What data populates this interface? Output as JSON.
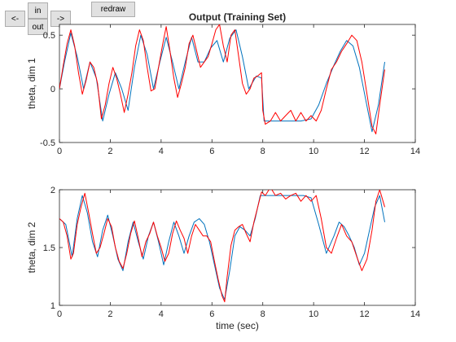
{
  "controls": {
    "prev_label": "<-",
    "zoom_in_label": "in",
    "zoom_out_label": "out",
    "next_label": "->",
    "redraw_label": "redraw"
  },
  "colors": {
    "target": "#0072bd",
    "prediction": "#ff0000",
    "axes": "#262626"
  },
  "chart_data": [
    {
      "type": "line",
      "title": "Output (Training Set)",
      "xlabel": "",
      "ylabel": "theta, dim 1",
      "xlim": [
        0,
        14
      ],
      "ylim": [
        -0.5,
        0.6
      ],
      "xticks": [
        0,
        2,
        4,
        6,
        8,
        10,
        12,
        14
      ],
      "yticks": [
        -0.5,
        0,
        0.5
      ],
      "grid": false,
      "series": [
        {
          "color": "#0072bd",
          "x": [
            0,
            0.2,
            0.45,
            0.7,
            0.95,
            1.2,
            1.45,
            1.7,
            1.95,
            2.2,
            2.45,
            2.7,
            2.95,
            3.2,
            3.45,
            3.7,
            3.95,
            4.2,
            4.45,
            4.7,
            4.95,
            5.2,
            5.45,
            5.7,
            5.95,
            6.2,
            6.45,
            6.7,
            6.95,
            7.2,
            7.45,
            7.75,
            7.95,
            8.05,
            8.5,
            9,
            9.5,
            9.9,
            10.2,
            10.5,
            10.8,
            11.05,
            11.3,
            11.55,
            11.8,
            12.05,
            12.3,
            12.55,
            12.8
          ],
          "y": [
            0,
            0.25,
            0.52,
            0.3,
            0.0,
            0.25,
            0.1,
            -0.3,
            -0.05,
            0.15,
            0.0,
            -0.2,
            0.2,
            0.5,
            0.32,
            0.0,
            0.25,
            0.48,
            0.25,
            0.0,
            0.25,
            0.48,
            0.25,
            0.25,
            0.38,
            0.45,
            0.25,
            0.47,
            0.55,
            0.3,
            0.0,
            0.12,
            0.1,
            -0.3,
            -0.3,
            -0.3,
            -0.3,
            -0.28,
            -0.15,
            0.05,
            0.22,
            0.35,
            0.45,
            0.4,
            0.2,
            -0.1,
            -0.4,
            -0.15,
            0.25
          ]
        },
        {
          "color": "#ff0000",
          "x": [
            0,
            0.15,
            0.3,
            0.45,
            0.6,
            0.75,
            0.9,
            1.05,
            1.2,
            1.35,
            1.5,
            1.65,
            1.8,
            1.95,
            2.1,
            2.25,
            2.4,
            2.55,
            2.7,
            2.85,
            3.0,
            3.15,
            3.3,
            3.45,
            3.6,
            3.75,
            3.9,
            4.05,
            4.2,
            4.35,
            4.5,
            4.65,
            4.8,
            4.95,
            5.1,
            5.25,
            5.4,
            5.55,
            5.7,
            5.85,
            6.0,
            6.15,
            6.3,
            6.45,
            6.6,
            6.75,
            6.9,
            7.05,
            7.2,
            7.35,
            7.5,
            7.65,
            7.8,
            7.95,
            8.0,
            8.1,
            8.3,
            8.5,
            8.7,
            8.9,
            9.1,
            9.3,
            9.5,
            9.7,
            9.9,
            10.1,
            10.3,
            10.5,
            10.7,
            10.9,
            11.1,
            11.3,
            11.5,
            11.7,
            11.9,
            12.1,
            12.3,
            12.45,
            12.6,
            12.8
          ],
          "y": [
            0,
            0.22,
            0.42,
            0.55,
            0.4,
            0.15,
            -0.05,
            0.08,
            0.25,
            0.2,
            0.05,
            -0.28,
            -0.15,
            0.05,
            0.2,
            0.1,
            -0.05,
            -0.22,
            -0.05,
            0.15,
            0.4,
            0.55,
            0.45,
            0.2,
            -0.02,
            0.0,
            0.2,
            0.4,
            0.58,
            0.35,
            0.1,
            -0.08,
            0.05,
            0.2,
            0.42,
            0.5,
            0.35,
            0.2,
            0.25,
            0.3,
            0.42,
            0.55,
            0.6,
            0.4,
            0.25,
            0.5,
            0.55,
            0.3,
            0.05,
            -0.05,
            0.0,
            0.1,
            0.12,
            0.15,
            -0.2,
            -0.33,
            -0.3,
            -0.22,
            -0.3,
            -0.25,
            -0.2,
            -0.3,
            -0.22,
            -0.3,
            -0.25,
            -0.3,
            -0.2,
            0.0,
            0.18,
            0.25,
            0.35,
            0.42,
            0.5,
            0.45,
            0.25,
            -0.05,
            -0.35,
            -0.42,
            -0.15,
            0.18
          ]
        }
      ]
    },
    {
      "type": "line",
      "title": "",
      "xlabel": "time (sec)",
      "ylabel": "theta, dim 2",
      "xlim": [
        0,
        14
      ],
      "ylim": [
        1,
        2
      ],
      "xticks": [
        0,
        2,
        4,
        6,
        8,
        10,
        12,
        14
      ],
      "yticks": [
        1,
        1.5,
        2
      ],
      "grid": false,
      "series": [
        {
          "color": "#0072bd",
          "x": [
            0,
            0.25,
            0.5,
            0.7,
            0.9,
            1.1,
            1.3,
            1.5,
            1.7,
            1.9,
            2.1,
            2.3,
            2.5,
            2.7,
            2.9,
            3.1,
            3.3,
            3.5,
            3.7,
            3.9,
            4.1,
            4.3,
            4.5,
            4.7,
            4.9,
            5.1,
            5.3,
            5.5,
            5.7,
            5.9,
            6.1,
            6.3,
            6.5,
            6.7,
            6.9,
            7.1,
            7.3,
            7.5,
            7.7,
            7.9,
            8.1,
            8.4,
            8.7,
            9.0,
            9.3,
            9.6,
            9.9,
            10.2,
            10.5,
            10.8,
            11.0,
            11.2,
            11.4,
            11.6,
            11.8,
            12.0,
            12.2,
            12.4,
            12.6,
            12.8
          ],
          "y": [
            1.75,
            1.7,
            1.42,
            1.75,
            1.95,
            1.8,
            1.55,
            1.42,
            1.65,
            1.78,
            1.6,
            1.4,
            1.3,
            1.55,
            1.72,
            1.55,
            1.4,
            1.6,
            1.72,
            1.55,
            1.35,
            1.55,
            1.72,
            1.6,
            1.45,
            1.6,
            1.72,
            1.75,
            1.7,
            1.55,
            1.35,
            1.15,
            1.05,
            1.3,
            1.6,
            1.68,
            1.65,
            1.6,
            1.75,
            1.95,
            1.95,
            1.95,
            1.95,
            1.95,
            1.95,
            1.95,
            1.93,
            1.7,
            1.45,
            1.6,
            1.72,
            1.68,
            1.6,
            1.5,
            1.35,
            1.45,
            1.65,
            1.85,
            1.95,
            1.72
          ]
        },
        {
          "color": "#ff0000",
          "x": [
            0,
            0.15,
            0.3,
            0.45,
            0.55,
            0.7,
            0.85,
            1.0,
            1.15,
            1.3,
            1.45,
            1.6,
            1.75,
            1.9,
            2.05,
            2.2,
            2.35,
            2.5,
            2.65,
            2.8,
            2.95,
            3.1,
            3.25,
            3.4,
            3.55,
            3.7,
            3.85,
            4.0,
            4.15,
            4.3,
            4.45,
            4.6,
            4.75,
            4.9,
            5.05,
            5.2,
            5.35,
            5.5,
            5.65,
            5.8,
            5.95,
            6.1,
            6.25,
            6.4,
            6.5,
            6.6,
            6.75,
            6.9,
            7.05,
            7.2,
            7.35,
            7.5,
            7.65,
            7.8,
            7.95,
            8.1,
            8.3,
            8.5,
            8.7,
            8.9,
            9.1,
            9.3,
            9.5,
            9.7,
            9.9,
            10.1,
            10.3,
            10.5,
            10.7,
            10.9,
            11.1,
            11.3,
            11.5,
            11.7,
            11.9,
            12.1,
            12.3,
            12.45,
            12.6,
            12.8
          ],
          "y": [
            1.75,
            1.72,
            1.6,
            1.4,
            1.45,
            1.7,
            1.85,
            1.97,
            1.8,
            1.62,
            1.45,
            1.5,
            1.62,
            1.75,
            1.68,
            1.5,
            1.38,
            1.32,
            1.45,
            1.62,
            1.73,
            1.58,
            1.42,
            1.55,
            1.62,
            1.72,
            1.6,
            1.5,
            1.38,
            1.45,
            1.62,
            1.73,
            1.65,
            1.58,
            1.45,
            1.6,
            1.7,
            1.65,
            1.6,
            1.6,
            1.55,
            1.38,
            1.22,
            1.08,
            1.03,
            1.25,
            1.52,
            1.65,
            1.68,
            1.7,
            1.62,
            1.55,
            1.72,
            1.85,
            1.98,
            1.95,
            2.02,
            1.95,
            1.97,
            1.92,
            1.95,
            1.97,
            1.9,
            1.95,
            1.9,
            1.95,
            1.75,
            1.5,
            1.45,
            1.58,
            1.7,
            1.6,
            1.55,
            1.42,
            1.3,
            1.4,
            1.65,
            1.9,
            2.0,
            1.85
          ]
        }
      ]
    }
  ]
}
